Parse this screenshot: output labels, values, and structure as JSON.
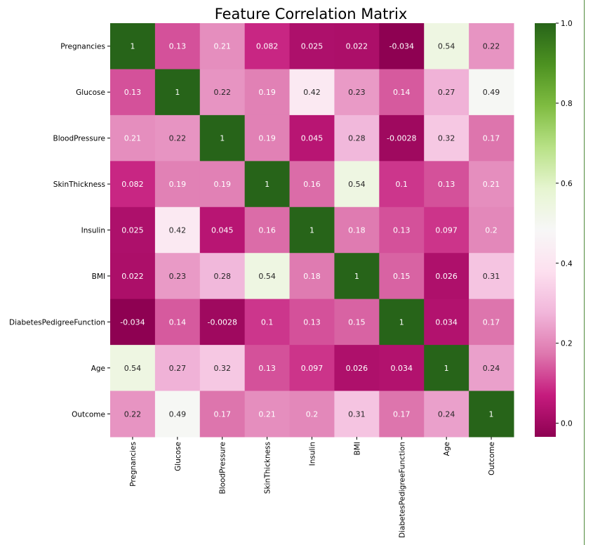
{
  "chart_data": {
    "type": "heatmap",
    "title": "Feature Correlation Matrix",
    "colormap": "PiYG",
    "vlim": [
      -0.034,
      1.0
    ],
    "labels": [
      "Pregnancies",
      "Glucose",
      "BloodPressure",
      "SkinThickness",
      "Insulin",
      "BMI",
      "DiabetesPedigreeFunction",
      "Age",
      "Outcome"
    ],
    "values": [
      [
        1,
        0.13,
        0.21,
        0.082,
        0.025,
        0.022,
        -0.034,
        0.54,
        0.22
      ],
      [
        0.13,
        1,
        0.22,
        0.19,
        0.42,
        0.23,
        0.14,
        0.27,
        0.49
      ],
      [
        0.21,
        0.22,
        1,
        0.19,
        0.045,
        0.28,
        -0.0028,
        0.32,
        0.17
      ],
      [
        0.082,
        0.19,
        0.19,
        1,
        0.16,
        0.54,
        0.1,
        0.13,
        0.21
      ],
      [
        0.025,
        0.42,
        0.045,
        0.16,
        1,
        0.18,
        0.13,
        0.097,
        0.2
      ],
      [
        0.022,
        0.23,
        0.28,
        0.54,
        0.18,
        1,
        0.15,
        0.026,
        0.31
      ],
      [
        -0.034,
        0.14,
        -0.0028,
        0.1,
        0.13,
        0.15,
        1,
        0.034,
        0.17
      ],
      [
        0.54,
        0.27,
        0.32,
        0.13,
        0.097,
        0.026,
        0.034,
        1,
        0.24
      ],
      [
        0.22,
        0.49,
        0.17,
        0.21,
        0.2,
        0.31,
        0.17,
        0.24,
        1
      ]
    ],
    "colorbar_ticks": [
      0.0,
      0.2,
      0.4,
      0.6,
      0.8,
      1.0
    ],
    "colorbar_tick_labels": [
      "0.0",
      "0.2",
      "0.4",
      "0.6",
      "0.8",
      "1.0"
    ]
  }
}
